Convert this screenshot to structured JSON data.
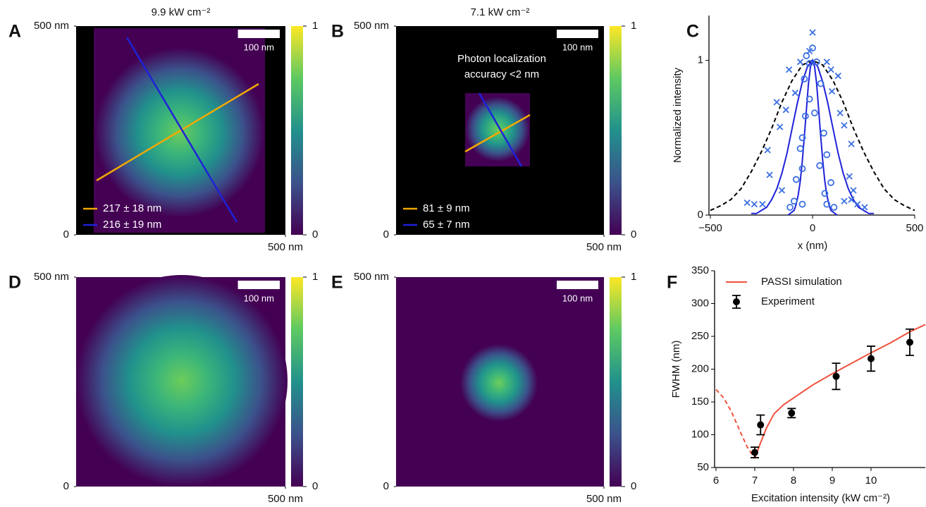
{
  "chart_data": [
    {
      "type": "image",
      "panel": "A",
      "title": "9.9 kW cm⁻²",
      "xlim": [
        0,
        500
      ],
      "ylim": [
        0,
        500
      ],
      "xticks": [
        {
          "value": 500,
          "label": "500 nm"
        }
      ],
      "yticks": [
        0,
        {
          "value": 500,
          "label": "500 nm"
        }
      ],
      "scale_bar": {
        "value": 100,
        "label": "100 nm"
      },
      "colorbar": {
        "lim": [
          0,
          1
        ],
        "ticks": [
          0,
          1
        ]
      },
      "legend": "lower left",
      "series": [
        {
          "name": "217 ± 18 nm",
          "color": "#f2a900"
        },
        {
          "name": "216 ± 19 nm",
          "color": "#1f22d8"
        }
      ]
    },
    {
      "type": "image",
      "panel": "B",
      "title": "7.1 kW cm⁻²",
      "annotation": [
        "Photon localization",
        "accuracy <2 nm"
      ],
      "xlim": [
        0,
        500
      ],
      "ylim": [
        0,
        500
      ],
      "xticks": [
        {
          "value": 500,
          "label": "500 nm"
        }
      ],
      "yticks": [
        0,
        {
          "value": 500,
          "label": "500 nm"
        }
      ],
      "scale_bar": {
        "value": 100,
        "label": "100 nm"
      },
      "colorbar": {
        "lim": [
          0,
          1
        ],
        "ticks": [
          0,
          1
        ]
      },
      "legend": "lower left",
      "series": [
        {
          "name": "81 ± 9 nm",
          "color": "#f2a900"
        },
        {
          "name": "65 ± 7 nm",
          "color": "#1f22d8"
        }
      ]
    },
    {
      "type": "line",
      "panel": "C",
      "xlabel": "x (nm)",
      "ylabel": "Normalized intensity",
      "xlim": [
        -500,
        500
      ],
      "ylim": [
        0,
        1.29
      ],
      "xticks": [
        {
          "value": -500,
          "label": "−500"
        },
        0,
        500
      ],
      "yticks": [
        0,
        1
      ],
      "series": [
        {
          "type": "line",
          "color": "#000000",
          "linestyle": "dashed",
          "x": [
            -500,
            -450,
            -400,
            -350,
            -300,
            -250,
            -200,
            -150,
            -100,
            -50,
            0,
            50,
            100,
            150,
            200,
            250,
            300,
            350,
            400,
            450,
            500
          ],
          "values": [
            0.03,
            0.06,
            0.1,
            0.17,
            0.28,
            0.41,
            0.56,
            0.73,
            0.87,
            0.97,
            1,
            0.97,
            0.87,
            0.73,
            0.56,
            0.41,
            0.28,
            0.17,
            0.1,
            0.06,
            0.03
          ]
        },
        {
          "type": "line",
          "color": "#1f22d8",
          "linestyle": "solid",
          "x": [
            -300,
            -275,
            -250,
            -225,
            -200,
            -175,
            -150,
            -125,
            -100,
            -75,
            -50,
            -25,
            0,
            25,
            50,
            75,
            100,
            125,
            150,
            175,
            200,
            225,
            250,
            275,
            300
          ],
          "values": [
            0.01,
            0.01,
            0.03,
            0.05,
            0.1,
            0.17,
            0.27,
            0.4,
            0.56,
            0.72,
            0.86,
            0.96,
            1,
            0.96,
            0.86,
            0.72,
            0.56,
            0.4,
            0.27,
            0.17,
            0.1,
            0.05,
            0.03,
            0.01,
            0.01
          ]
        },
        {
          "type": "line",
          "color": "#1f22d8",
          "linestyle": "solid",
          "x": [
            -120,
            -110,
            -100,
            -90,
            -80,
            -70,
            -60,
            -50,
            -40,
            -30,
            -20,
            -10,
            0,
            10,
            20,
            30,
            40,
            50,
            60,
            70,
            80,
            90,
            100,
            110,
            120
          ],
          "values": [
            0,
            0.01,
            0.02,
            0.03,
            0.07,
            0.13,
            0.22,
            0.35,
            0.51,
            0.68,
            0.85,
            0.96,
            1,
            0.96,
            0.85,
            0.68,
            0.51,
            0.35,
            0.22,
            0.13,
            0.07,
            0.03,
            0.02,
            0.01,
            0
          ]
        },
        {
          "type": "scatter",
          "marker": "x",
          "color": "#3b6fe0",
          "x": [
            0,
            -15,
            -60,
            70,
            -115,
            90,
            125,
            -85,
            -175,
            95,
            -130,
            135,
            -160,
            155,
            -220,
            190,
            -210,
            180,
            200,
            -285,
            -245,
            -320,
            155,
            190,
            220,
            255,
            -150
          ],
          "values": [
            1.18,
            1.06,
            0.99,
            0.99,
            0.94,
            0.94,
            0.9,
            0.79,
            0.73,
            0.8,
            0.68,
            0.66,
            0.57,
            0.58,
            0.42,
            0.46,
            0.26,
            0.25,
            0.16,
            0.07,
            0.07,
            0.08,
            0.09,
            0.1,
            0.07,
            0.05,
            0.16
          ]
        },
        {
          "type": "scatter",
          "marker": "o",
          "color": "#3b6fe0",
          "x": [
            0,
            -30,
            -15,
            20,
            -40,
            40,
            -15,
            10,
            -35,
            -50,
            55,
            -60,
            70,
            -50,
            35,
            -80,
            90,
            -90,
            -50,
            70,
            105,
            -110,
            60
          ],
          "values": [
            1.08,
            1.03,
            0.98,
            0.99,
            0.88,
            0.85,
            0.75,
            0.66,
            0.64,
            0.5,
            0.53,
            0.43,
            0.39,
            0.3,
            0.32,
            0.23,
            0.21,
            0.09,
            0.07,
            0.07,
            0.05,
            0.05,
            0.14
          ]
        }
      ]
    },
    {
      "type": "image",
      "panel": "D",
      "xlim": [
        0,
        500
      ],
      "ylim": [
        0,
        500
      ],
      "xticks": [
        {
          "value": 500,
          "label": "500 nm"
        }
      ],
      "yticks": [
        0,
        {
          "value": 500,
          "label": "500 nm"
        }
      ],
      "scale_bar": {
        "value": 100,
        "label": "100 nm"
      },
      "colorbar": {
        "lim": [
          0,
          1
        ],
        "ticks": [
          0,
          1
        ]
      }
    },
    {
      "type": "image",
      "panel": "E",
      "xlim": [
        0,
        500
      ],
      "ylim": [
        0,
        500
      ],
      "xticks": [
        {
          "value": 500,
          "label": "500 nm"
        }
      ],
      "yticks": [
        0,
        {
          "value": 500,
          "label": "500 nm"
        }
      ],
      "scale_bar": {
        "value": 100,
        "label": "100 nm"
      },
      "colorbar": {
        "lim": [
          0,
          1
        ],
        "ticks": [
          0,
          1
        ]
      }
    },
    {
      "type": "line",
      "panel": "F",
      "xlabel": "Excitation intensity (kW cm⁻²)",
      "ylabel": "FWHM (nm)",
      "xlim": [
        6,
        11.4
      ],
      "ylim": [
        50,
        350
      ],
      "xticks": [
        6,
        7,
        8,
        9,
        10
      ],
      "yticks": [
        50,
        100,
        150,
        200,
        250,
        300,
        350
      ],
      "legend": "upper left",
      "series": [
        {
          "type": "line",
          "name": "PASSI simulation",
          "color": "#f0503c",
          "segments": [
            {
              "linestyle": "dashed",
              "x": [
                6,
                6.2,
                6.4,
                6.6,
                6.8,
                6.95,
                7.0
              ],
              "values": [
                169,
                156,
                135,
                108,
                82,
                68,
                64
              ]
            },
            {
              "linestyle": "solid",
              "x": [
                7.0,
                7.15,
                7.3,
                7.5,
                7.75,
                8,
                8.5,
                9,
                9.5,
                10,
                10.5,
                11,
                11.4
              ],
              "values": [
                64,
                88,
                110,
                132,
                146,
                156,
                176,
                193,
                209,
                225,
                240,
                257,
                268
              ]
            }
          ]
        },
        {
          "type": "errorbar",
          "name": "Experiment",
          "color": "#000000",
          "x": [
            7.0,
            7.15,
            7.95,
            9.1,
            10.0,
            11.0
          ],
          "values": [
            73,
            115,
            133,
            189,
            216,
            241
          ],
          "errors": [
            8,
            15,
            7,
            20,
            19,
            20
          ]
        }
      ]
    }
  ]
}
